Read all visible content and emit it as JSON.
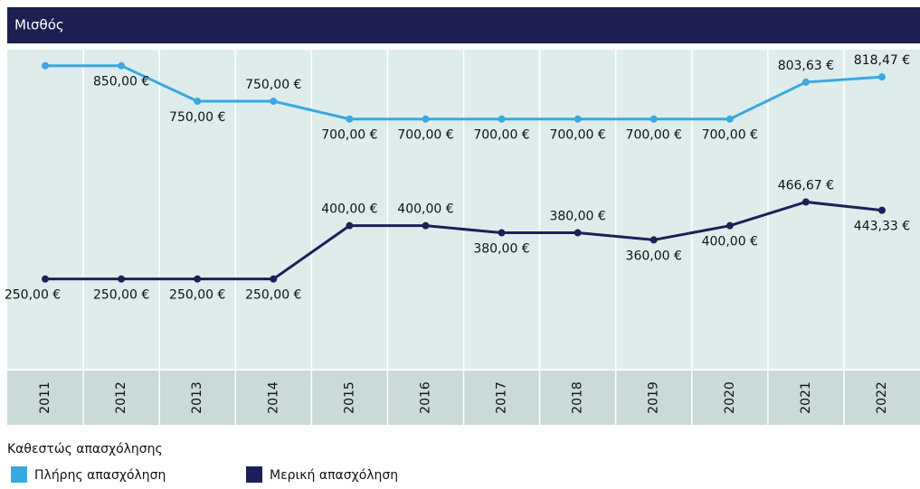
{
  "chart_data": {
    "type": "line",
    "title": "Μισθός",
    "categories": [
      "2011",
      "2012",
      "2013",
      "2014",
      "2015",
      "2016",
      "2017",
      "2018",
      "2019",
      "2020",
      "2021",
      "2022"
    ],
    "series": [
      {
        "name": "Πλήρης απασχόληση",
        "color": "#3aa8e0",
        "values": [
          850,
          850,
          750,
          750,
          700,
          700,
          700,
          700,
          700,
          700,
          803.63,
          818.47
        ],
        "value_labels": [
          null,
          "850,00 €",
          "750,00 €",
          "750,00 €",
          "700,00 €",
          "700,00 €",
          "700,00 €",
          "700,00 €",
          "700,00 €",
          "700,00 €",
          "803,63 €",
          "818,47 €"
        ]
      },
      {
        "name": "Μερική απασχόληση",
        "color": "#1c2058",
        "values": [
          250,
          250,
          250,
          250,
          400,
          400,
          380,
          380,
          360,
          400,
          466.67,
          443.33
        ],
        "value_labels": [
          "250,00 €",
          "250,00 €",
          "250,00 €",
          "250,00 €",
          "400,00 €",
          "400,00 €",
          "380,00 €",
          "380,00 €",
          "360,00 €",
          "400,00 €",
          "466,67 €",
          "443,33 €"
        ]
      }
    ],
    "legend_title": "Καθεστώς απασχόλησης",
    "ylim": [
      0,
      895
    ]
  }
}
